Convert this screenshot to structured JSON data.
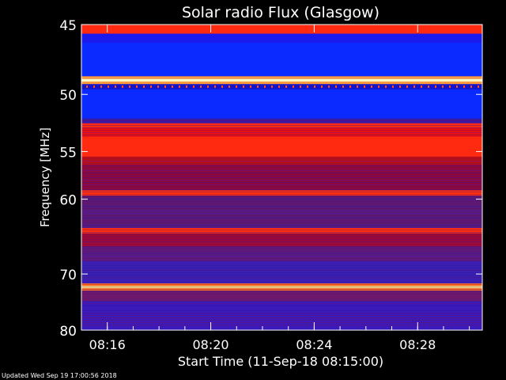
{
  "chart_data": {
    "type": "heatmap",
    "title": "Solar radio Flux (Glasgow)",
    "ylabel": "Frequency [MHz]",
    "xlabel": "Start Time (11-Sep-18 08:15:00)",
    "yticks": [
      45,
      50,
      55,
      60,
      70,
      80
    ],
    "xticks": [
      "08:16",
      "08:20",
      "08:24",
      "08:28"
    ],
    "xtick_minutes": [
      16,
      20,
      24,
      28
    ],
    "xlim_minutes": [
      15,
      30.5
    ],
    "y_display": "reciprocal",
    "ylim": [
      45,
      80
    ],
    "bands": [
      {
        "f_from": 45.0,
        "f_to": 45.6,
        "color": "#ff2a10"
      },
      {
        "f_from": 45.6,
        "f_to": 46.2,
        "color": "#1a1aee"
      },
      {
        "f_from": 46.2,
        "f_to": 48.6,
        "color": "#0a2aff"
      },
      {
        "f_from": 48.6,
        "f_to": 48.8,
        "color": "#ff9a40"
      },
      {
        "f_from": 48.8,
        "f_to": 49.0,
        "color": "#ffffc8"
      },
      {
        "f_from": 49.0,
        "f_to": 49.2,
        "color": "#ff9a40"
      },
      {
        "f_from": 49.2,
        "f_to": 49.6,
        "color": "#1414c8"
      },
      {
        "f_from": 49.6,
        "f_to": 52.0,
        "color": "#0a2aff"
      },
      {
        "f_from": 52.0,
        "f_to": 52.4,
        "color": "#3a1aa0"
      },
      {
        "f_from": 52.4,
        "f_to": 52.8,
        "color": "#ff2a10"
      },
      {
        "f_from": 52.8,
        "f_to": 53.6,
        "color": "#e81010"
      },
      {
        "f_from": 53.6,
        "f_to": 55.5,
        "color": "#ff2a10"
      },
      {
        "f_from": 55.5,
        "f_to": 56.3,
        "color": "#b8101a"
      },
      {
        "f_from": 56.3,
        "f_to": 59.0,
        "color": "#8a0a40"
      },
      {
        "f_from": 59.0,
        "f_to": 59.6,
        "color": "#ff3010"
      },
      {
        "f_from": 59.6,
        "f_to": 63.5,
        "color": "#5a1a78"
      },
      {
        "f_from": 63.5,
        "f_to": 64.2,
        "color": "#ff3010"
      },
      {
        "f_from": 64.2,
        "f_to": 66.0,
        "color": "#9a0a3a"
      },
      {
        "f_from": 66.0,
        "f_to": 68.0,
        "color": "#5a1a80"
      },
      {
        "f_from": 68.0,
        "f_to": 71.5,
        "color": "#3a20b0"
      },
      {
        "f_from": 71.5,
        "f_to": 71.9,
        "color": "#ff7020"
      },
      {
        "f_from": 71.9,
        "f_to": 72.3,
        "color": "#ffe080"
      },
      {
        "f_from": 72.3,
        "f_to": 72.7,
        "color": "#ff7020"
      },
      {
        "f_from": 72.7,
        "f_to": 74.5,
        "color": "#6a1a70"
      },
      {
        "f_from": 74.5,
        "f_to": 80.0,
        "color": "#3a1ab8"
      }
    ],
    "texture_colors": [
      "#2a10a0",
      "#6a0a60",
      "#4a18c0",
      "#8a0a40"
    ]
  },
  "footer": {
    "updated_text": "Updated Wed Sep 19 17:00:56 2018"
  },
  "colors": {
    "background": "#000000",
    "axis": "#ffffff"
  }
}
